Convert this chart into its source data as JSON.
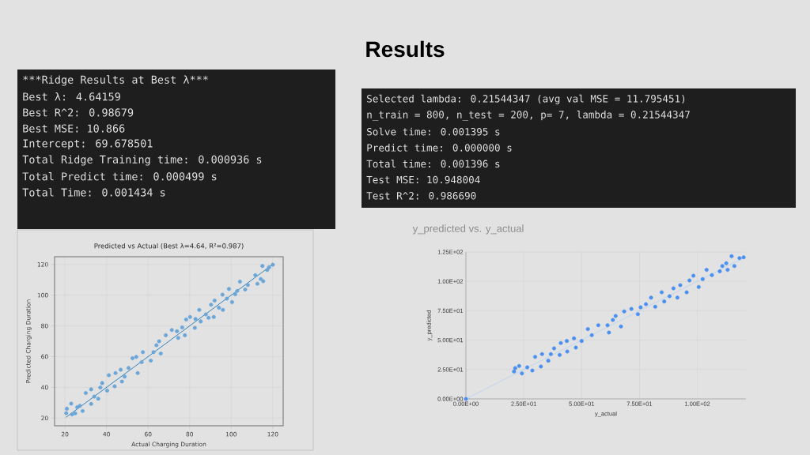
{
  "chart_data": [
    {
      "type": "other",
      "title": "Results"
    },
    {
      "type": "other",
      "annotations": [
        "***",
        "Ridge Results at Best λ",
        "***",
        "Best λ: 4.64159",
        "Best R^2: 0.98679",
        "Best MSE: 10.866",
        "Intercept: 69.678501",
        "Total Ridge Training time: 0.000936 s",
        "Total Predict time: 0.000499 s",
        "Total Time: 0.001434 s"
      ]
    },
    {
      "type": "other",
      "annotations": [
        "Selected lambda: 0.21544347 (avg val MSE = 11.795451)",
        "n_train = 800, n_test = 200, p= 7,  lambda = 0.21544347",
        "Solve time:   0.001395 s",
        "Predict time: 0.000000 s",
        "Total time: 0.001396 s",
        "Test MSE: 10.948004",
        "Test R^2: 0.986690"
      ]
    },
    {
      "type": "scatter",
      "title": "Predicted vs Actual (Best λ=4.64, R²=0.987)",
      "xlabel": "Actual Charging Duration",
      "ylabel": "Predicted Charging Duration",
      "xlim": [
        15,
        125
      ],
      "ylim": [
        15,
        125
      ],
      "xticks": [
        20,
        40,
        60,
        80,
        100,
        120
      ],
      "yticks": [
        20,
        40,
        60,
        80,
        100,
        120
      ],
      "grid": true,
      "series": [
        {
          "type": "scatter",
          "color": "#6aa6d8",
          "marker": "circle",
          "x": [
            20.6,
            20.9,
            23.0,
            23.4,
            24.9,
            25.9,
            27.2,
            28.5,
            30.0,
            32.6,
            32.6,
            34.1,
            36.0,
            37.0,
            37.9,
            40.3,
            41.1,
            43.9,
            44.3,
            46.8,
            47.4,
            48.7,
            50.6,
            52.5,
            54.3,
            55.0,
            56.9,
            57.5,
            61.3,
            62.6,
            64.0,
            65.3,
            66.1,
            68.5,
            71.4,
            73.9,
            74.5,
            76.4,
            77.7,
            78.3,
            80.2,
            82.5,
            82.8,
            84.6,
            85.3,
            87.8,
            89.1,
            90.3,
            91.6,
            92.0,
            94.1,
            95.8,
            96.0,
            97.9,
            98.9,
            100.4,
            101.9,
            102.9,
            104.2,
            106.7,
            108.0,
            111.6,
            112.6,
            114.2,
            115.0,
            115.4,
            117.3,
            118.2,
            120.0
          ],
          "values": [
            23.2,
            26.1,
            29.4,
            22.4,
            23.1,
            27.1,
            28.0,
            24.6,
            36.3,
            29.2,
            38.7,
            34.0,
            32.6,
            39.9,
            42.8,
            37.9,
            47.9,
            40.7,
            49.3,
            51.5,
            43.8,
            47.0,
            52.6,
            58.9,
            59.8,
            49.3,
            56.4,
            62.9,
            57.4,
            62.9,
            67.4,
            70.0,
            62.0,
            73.9,
            77.3,
            76.5,
            72.2,
            79.0,
            73.9,
            84.1,
            85.8,
            78.7,
            84.5,
            90.4,
            82.9,
            87.5,
            85.3,
            93.8,
            85.8,
            96.5,
            91.8,
            100.3,
            90.4,
            97.7,
            104.0,
            95.5,
            100.6,
            102.8,
            108.8,
            103.7,
            106.6,
            113.0,
            107.4,
            110.5,
            119.0,
            109.1,
            116.4,
            118.1,
            119.8
          ]
        },
        {
          "type": "line",
          "color": "#1f77b4",
          "marker": "none",
          "x": [
            20.5,
            120
          ],
          "values": [
            20.5,
            120
          ]
        }
      ]
    },
    {
      "type": "scatter",
      "title": "y_predicted vs. y_actual",
      "xlabel": "y_actual",
      "ylabel": "y_predicted",
      "xlim": [
        0,
        121
      ],
      "ylim": [
        0,
        125
      ],
      "xticks": [
        {
          "value": 0,
          "label": "0.00E+00"
        },
        {
          "value": 25,
          "label": "2.50E+01"
        },
        {
          "value": 50,
          "label": "5.00E+01"
        },
        {
          "value": 75,
          "label": "7.50E+01"
        },
        {
          "value": 100,
          "label": "1.00E+02"
        }
      ],
      "yticks": [
        {
          "value": 0,
          "label": "0.00E+00"
        },
        {
          "value": 25,
          "label": "2.50E+01"
        },
        {
          "value": 50,
          "label": "5.00E+01"
        },
        {
          "value": 75,
          "label": "7.50E+01"
        },
        {
          "value": 100,
          "label": "1.00E+02"
        },
        {
          "value": 125,
          "label": "1.25E+02"
        }
      ],
      "grid": true,
      "series": [
        {
          "type": "line",
          "color": "#b9d4f5",
          "marker": "none",
          "x": [
            0,
            121
          ],
          "values": [
            0,
            121
          ]
        },
        {
          "type": "scatter",
          "color": "#4a90f0",
          "marker": "circle",
          "x": [
            0,
            20.8,
            21.3,
            23.0,
            24.2,
            26.5,
            28.7,
            29.9,
            32.4,
            32.9,
            35.6,
            36.7,
            38.1,
            40.5,
            41.0,
            43.8,
            43.6,
            46.7,
            47.5,
            50.0,
            52.7,
            54.4,
            57.2,
            61.2,
            61.8,
            63.5,
            64.7,
            67.0,
            68.4,
            71.5,
            74.3,
            75.5,
            77.8,
            80.0,
            81.8,
            84.6,
            85.7,
            88.0,
            89.7,
            91.4,
            92.6,
            95.4,
            96.6,
            98.3,
            100.6,
            102.3,
            104.0,
            106.3,
            109.7,
            110.8,
            112.5,
            113.1,
            114.8,
            116.0,
            118.2,
            120.0
          ],
          "values": [
            0,
            23.3,
            26.2,
            28.0,
            21.7,
            26.9,
            24.2,
            35.8,
            27.6,
            38.1,
            32.5,
            38.1,
            43.0,
            37.4,
            47.5,
            40.3,
            49.3,
            51.5,
            43.7,
            49.3,
            59.4,
            54.2,
            62.7,
            62.7,
            56.5,
            67.2,
            70.6,
            61.6,
            74.4,
            76.6,
            72.1,
            78.0,
            80.6,
            86.2,
            78.4,
            90.7,
            82.9,
            87.4,
            94.1,
            86.2,
            96.8,
            90.7,
            100.8,
            104.8,
            95.2,
            101.9,
            109.8,
            105.3,
            108.6,
            113.1,
            115.4,
            109.8,
            121.4,
            113.1,
            119.8,
            120.5
          ]
        }
      ]
    }
  ]
}
